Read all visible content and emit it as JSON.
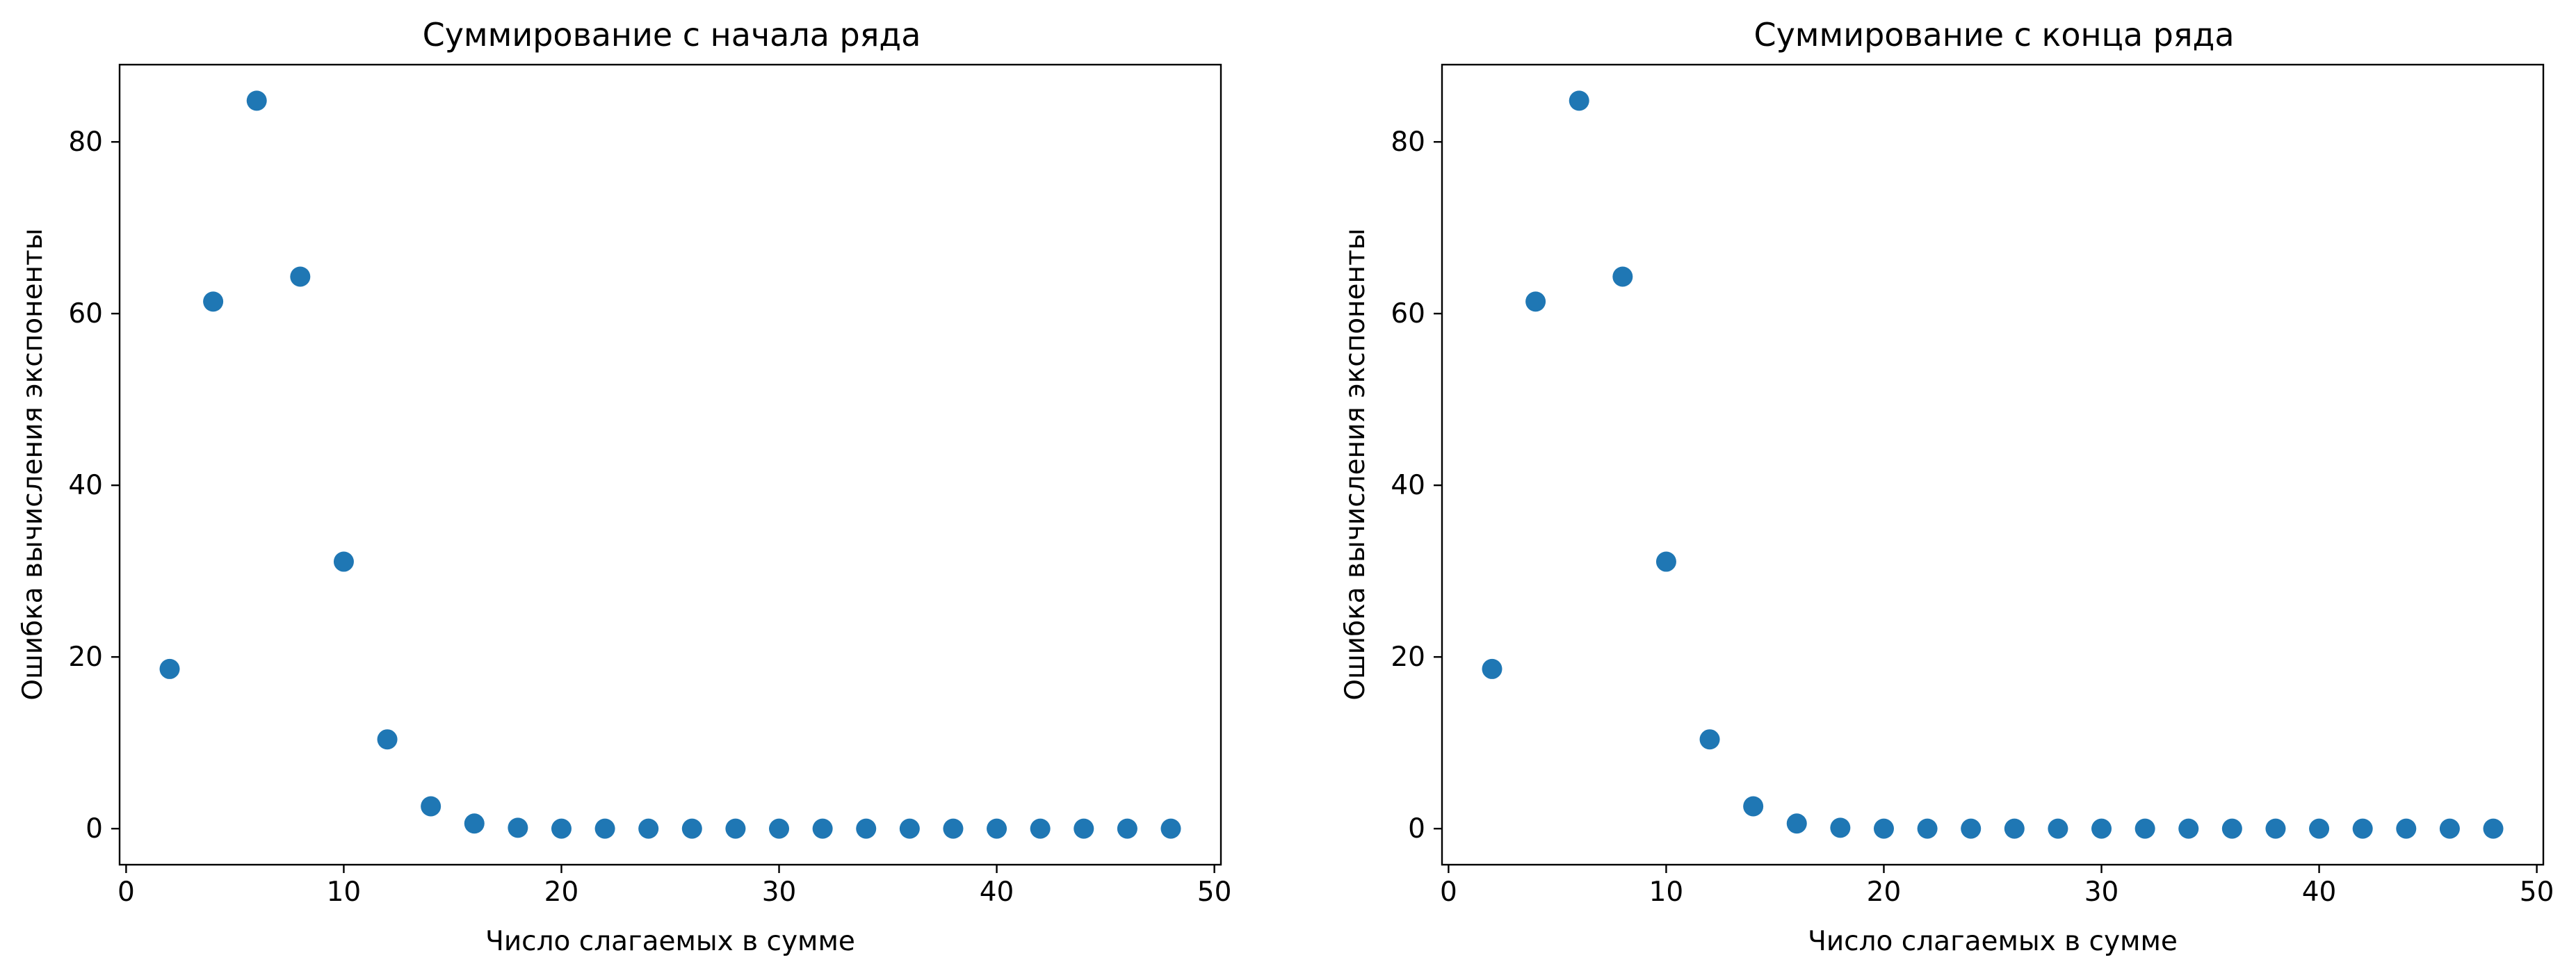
{
  "chart_data": [
    {
      "type": "scatter",
      "title": "Суммирование с начала ряда",
      "xlabel": "Число слагаемых в сумме",
      "ylabel": "Ошибка вычисления экспоненты",
      "xlim": [
        -0.3,
        50.3
      ],
      "ylim": [
        -4.2,
        89.0
      ],
      "xticks": [
        0,
        10,
        20,
        30,
        40,
        50
      ],
      "yticks": [
        0,
        20,
        40,
        60,
        80
      ],
      "grid": false,
      "marker_color": "#1f77b4",
      "series": [
        {
          "x": [
            2,
            4,
            6,
            8,
            10,
            12,
            14,
            16,
            18,
            20,
            22,
            24,
            26,
            28,
            30,
            32,
            34,
            36,
            38,
            40,
            42,
            44,
            46,
            48
          ],
          "y": [
            18.6,
            61.4,
            84.8,
            64.3,
            31.1,
            10.4,
            2.6,
            0.6,
            0.1,
            0,
            0,
            0,
            0,
            0,
            0,
            0,
            0,
            0,
            0,
            0,
            0,
            0,
            0,
            0
          ]
        }
      ]
    },
    {
      "type": "scatter",
      "title": "Суммирование с конца ряда",
      "xlabel": "Число слагаемых в сумме",
      "ylabel": "Ошибка вычисления экспоненты",
      "xlim": [
        -0.3,
        50.3
      ],
      "ylim": [
        -4.2,
        89.0
      ],
      "xticks": [
        0,
        10,
        20,
        30,
        40,
        50
      ],
      "yticks": [
        0,
        20,
        40,
        60,
        80
      ],
      "grid": false,
      "marker_color": "#1f77b4",
      "series": [
        {
          "x": [
            2,
            4,
            6,
            8,
            10,
            12,
            14,
            16,
            18,
            20,
            22,
            24,
            26,
            28,
            30,
            32,
            34,
            36,
            38,
            40,
            42,
            44,
            46,
            48
          ],
          "y": [
            18.6,
            61.4,
            84.8,
            64.3,
            31.1,
            10.4,
            2.6,
            0.6,
            0.1,
            0,
            0,
            0,
            0,
            0,
            0,
            0,
            0,
            0,
            0,
            0,
            0,
            0,
            0,
            0
          ]
        }
      ]
    }
  ]
}
